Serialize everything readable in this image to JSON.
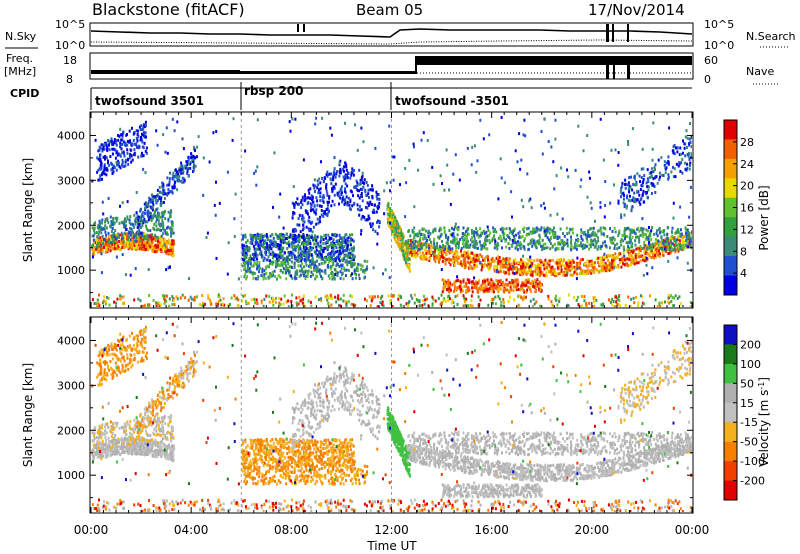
{
  "header": {
    "title": "Blackstone (fitACF)",
    "beam": "Beam 05",
    "date": "17/Nov/2014"
  },
  "sky_panel": {
    "left_label": "N.Sky",
    "left_ticks": [
      "10^5",
      "10^0"
    ],
    "right_ticks": [
      "10^5",
      "10^0"
    ],
    "right_label": "N.Search"
  },
  "freq_panel": {
    "left_label_1": "Freq.",
    "left_label_2": "[MHz]",
    "left_ticks": [
      "18",
      "8"
    ],
    "right_ticks": [
      "60",
      "0"
    ],
    "right_label": "Nave"
  },
  "cpid": {
    "label": "CPID",
    "segments": [
      {
        "name": "twofsound 3501",
        "start_hour": 0
      },
      {
        "name": "rbsp 200",
        "start_hour": 6
      },
      {
        "name": "twofsound -3501",
        "start_hour": 12
      }
    ]
  },
  "colors": {
    "power_scale": [
      "#0000e0",
      "#2050d0",
      "#3a8a7a",
      "#33a040",
      "#60c030",
      "#e8d800",
      "#f5a000",
      "#f06000",
      "#e00000"
    ],
    "velocity_scale": [
      "#1010c0",
      "#1a7a1a",
      "#40c040",
      "#b0b0b0",
      "#c0c0c0",
      "#f5b020",
      "#f58000",
      "#f04000",
      "#e00000"
    ],
    "no_data": "#ffffff"
  },
  "chart_data": [
    {
      "type": "heatmap",
      "name": "power",
      "ylabel": "Slant Range [km]",
      "yticks": [
        1000,
        2000,
        3000,
        4000
      ],
      "ylim": [
        180,
        4500
      ],
      "xlim": [
        0,
        24
      ],
      "colorbar_label": "Power [dB]",
      "colorbar_ticks": [
        "28",
        "24",
        "20",
        "16",
        "12",
        "8",
        "4"
      ],
      "colorbar_range": [
        0,
        30
      ]
    },
    {
      "type": "heatmap",
      "name": "velocity",
      "ylabel": "Slant Range [km]",
      "yticks": [
        1000,
        2000,
        3000,
        4000
      ],
      "ylim": [
        180,
        4500
      ],
      "xlim": [
        0,
        24
      ],
      "colorbar_label": "Velocity [m s^-1]",
      "colorbar_ticks": [
        "200",
        "100",
        "50",
        "15",
        "-15",
        "-50",
        "-100",
        "-200"
      ],
      "xlabel": "Time UT",
      "xticks": [
        "00:00",
        "04:00",
        "08:00",
        "12:00",
        "16:00",
        "20:00",
        "00:00"
      ]
    }
  ]
}
